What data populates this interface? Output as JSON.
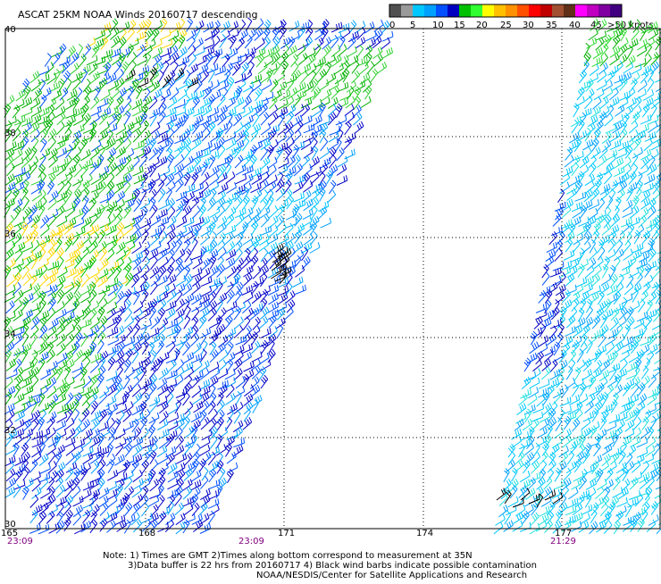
{
  "title": "ASCAT 25KM NOAA Winds 20160717 descending",
  "color_scale": {
    "labels": [
      "0",
      "5",
      "10",
      "15",
      "20",
      "25",
      "30",
      "35",
      "40",
      "45",
      ">50 knots"
    ],
    "colors": [
      "#505050",
      "#9a9a9a",
      "#00c8ff",
      "#00a0ff",
      "#0050ff",
      "#0000c0",
      "#00c000",
      "#30ff30",
      "#ffff00",
      "#ffc000",
      "#ff9000",
      "#ff5000",
      "#ff0000",
      "#c00000",
      "#a05030",
      "#603018",
      "#ff00ff",
      "#c000c0",
      "#8000a0",
      "#400080"
    ]
  },
  "map": {
    "lon_ticks": [
      "165",
      "168",
      "171",
      "174",
      "177"
    ],
    "lat_ticks": [
      "40",
      "38",
      "36",
      "34",
      "32",
      "30"
    ],
    "times": [
      "23:09",
      "23:09",
      "21:29"
    ]
  },
  "notes": {
    "line1": "Note: 1) Times are GMT 2)Times along bottom correspond to measurement at 35N",
    "line2": "3)Data buffer is 22 hrs from 20160717 4) Black wind barbs indicate possible contamination",
    "line3": "NOAA/NESDIS/Center for Satellite Applications and Research"
  }
}
